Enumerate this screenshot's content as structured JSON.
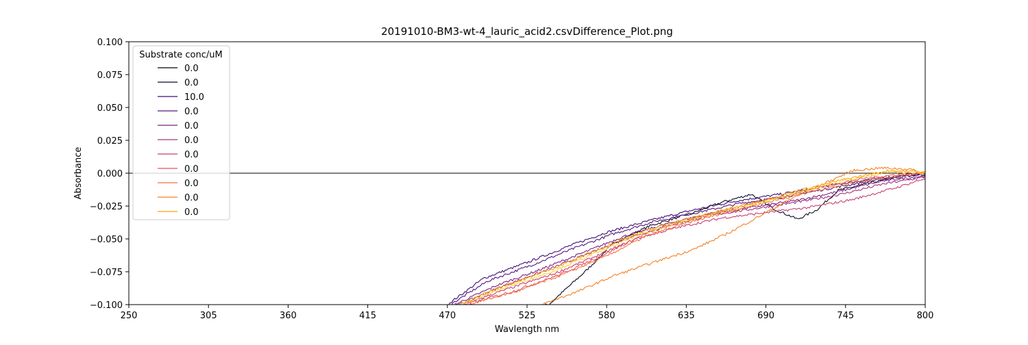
{
  "chart_data": {
    "type": "line",
    "title": "20191010-BM3-wt-4_lauric_acid2.csvDifference_Plot.png",
    "xlabel": "Wavlength nm",
    "ylabel": "Absorbance",
    "xlim": [
      250,
      800
    ],
    "ylim": [
      -0.1,
      0.1
    ],
    "xticks": [
      "250",
      "305",
      "360",
      "415",
      "470",
      "525",
      "580",
      "635",
      "690",
      "745",
      "800"
    ],
    "yticks": [
      "0.100",
      "0.075",
      "0.050",
      "0.025",
      "0.000",
      "−0.025",
      "−0.050",
      "−0.075",
      "−0.100"
    ],
    "grid": false,
    "legend": {
      "title": "Substrate conc/uM",
      "placement": "upper-left",
      "entries": [
        "0.0",
        "0.0",
        "10.0",
        "0.0",
        "0.0",
        "0.0",
        "0.0",
        "0.0",
        "0.0",
        "0.0",
        "0.0"
      ]
    },
    "series": [
      {
        "color": "#000000",
        "points": [
          [
            250,
            0.0
          ],
          [
            800,
            0.0
          ]
        ]
      },
      {
        "color": "#0b0a24",
        "points": [
          [
            485,
            -0.1
          ],
          [
            520,
            -0.103
          ],
          [
            540,
            -0.1
          ],
          [
            565,
            -0.075
          ],
          [
            585,
            -0.053
          ],
          [
            610,
            -0.04
          ],
          [
            640,
            -0.03
          ],
          [
            660,
            -0.022
          ],
          [
            680,
            -0.016
          ],
          [
            695,
            -0.027
          ],
          [
            712,
            -0.035
          ],
          [
            725,
            -0.028
          ],
          [
            740,
            -0.013
          ],
          [
            760,
            -0.008
          ],
          [
            785,
            -0.002
          ],
          [
            800,
            -0.001
          ]
        ]
      },
      {
        "color": "#3b0f70",
        "points": [
          [
            470,
            -0.1
          ],
          [
            495,
            -0.08
          ],
          [
            525,
            -0.068
          ],
          [
            555,
            -0.055
          ],
          [
            580,
            -0.045
          ],
          [
            610,
            -0.036
          ],
          [
            640,
            -0.028
          ],
          [
            670,
            -0.021
          ],
          [
            700,
            -0.016
          ],
          [
            730,
            -0.01
          ],
          [
            760,
            -0.005
          ],
          [
            790,
            -0.001
          ],
          [
            800,
            0.0
          ]
        ]
      },
      {
        "color": "#57157e",
        "points": [
          [
            472,
            -0.1
          ],
          [
            498,
            -0.082
          ],
          [
            528,
            -0.07
          ],
          [
            558,
            -0.057
          ],
          [
            585,
            -0.046
          ],
          [
            612,
            -0.037
          ],
          [
            642,
            -0.03
          ],
          [
            672,
            -0.023
          ],
          [
            702,
            -0.018
          ],
          [
            732,
            -0.012
          ],
          [
            762,
            -0.006
          ],
          [
            790,
            -0.002
          ],
          [
            800,
            -0.001
          ]
        ]
      },
      {
        "color": "#7a2182",
        "points": [
          [
            475,
            -0.1
          ],
          [
            505,
            -0.085
          ],
          [
            535,
            -0.073
          ],
          [
            565,
            -0.06
          ],
          [
            592,
            -0.048
          ],
          [
            620,
            -0.039
          ],
          [
            650,
            -0.031
          ],
          [
            680,
            -0.026
          ],
          [
            710,
            -0.021
          ],
          [
            740,
            -0.014
          ],
          [
            770,
            -0.006
          ],
          [
            800,
            -0.002
          ]
        ]
      },
      {
        "color": "#a3307e",
        "points": [
          [
            478,
            -0.1
          ],
          [
            508,
            -0.086
          ],
          [
            538,
            -0.074
          ],
          [
            568,
            -0.061
          ],
          [
            595,
            -0.049
          ],
          [
            622,
            -0.04
          ],
          [
            652,
            -0.032
          ],
          [
            682,
            -0.027
          ],
          [
            712,
            -0.022
          ],
          [
            742,
            -0.016
          ],
          [
            772,
            -0.008
          ],
          [
            800,
            -0.003
          ]
        ]
      },
      {
        "color": "#c83e73",
        "points": [
          [
            480,
            -0.1
          ],
          [
            512,
            -0.088
          ],
          [
            545,
            -0.076
          ],
          [
            575,
            -0.062
          ],
          [
            600,
            -0.05
          ],
          [
            630,
            -0.041
          ],
          [
            660,
            -0.034
          ],
          [
            690,
            -0.03
          ],
          [
            720,
            -0.026
          ],
          [
            750,
            -0.02
          ],
          [
            780,
            -0.011
          ],
          [
            800,
            -0.004
          ]
        ]
      },
      {
        "color": "#e5505f",
        "points": [
          [
            482,
            -0.1
          ],
          [
            515,
            -0.09
          ],
          [
            548,
            -0.077
          ],
          [
            578,
            -0.062
          ],
          [
            605,
            -0.047
          ],
          [
            632,
            -0.037
          ],
          [
            662,
            -0.028
          ],
          [
            692,
            -0.02
          ],
          [
            722,
            -0.012
          ],
          [
            752,
            -0.005
          ],
          [
            780,
            -0.001
          ],
          [
            800,
            0.0
          ]
        ]
      },
      {
        "color": "#f36e43",
        "points": [
          [
            484,
            -0.1
          ],
          [
            518,
            -0.09
          ],
          [
            550,
            -0.077
          ],
          [
            580,
            -0.063
          ],
          [
            607,
            -0.048
          ],
          [
            635,
            -0.038
          ],
          [
            665,
            -0.029
          ],
          [
            695,
            -0.021
          ],
          [
            725,
            -0.013
          ],
          [
            755,
            -0.006
          ],
          [
            782,
            -0.002
          ],
          [
            800,
            0.0
          ]
        ]
      },
      {
        "color": "#f57f20",
        "points": [
          [
            535,
            -0.1
          ],
          [
            560,
            -0.09
          ],
          [
            585,
            -0.078
          ],
          [
            612,
            -0.068
          ],
          [
            640,
            -0.058
          ],
          [
            665,
            -0.045
          ],
          [
            690,
            -0.03
          ],
          [
            710,
            -0.018
          ],
          [
            730,
            -0.008
          ],
          [
            750,
            0.002
          ],
          [
            770,
            0.004
          ],
          [
            790,
            0.003
          ],
          [
            800,
            -0.001
          ]
        ]
      },
      {
        "color": "#fba40a",
        "points": [
          [
            478,
            -0.1
          ],
          [
            508,
            -0.086
          ],
          [
            540,
            -0.074
          ],
          [
            570,
            -0.06
          ],
          [
            598,
            -0.047
          ],
          [
            627,
            -0.037
          ],
          [
            657,
            -0.029
          ],
          [
            687,
            -0.021
          ],
          [
            717,
            -0.012
          ],
          [
            747,
            -0.004
          ],
          [
            775,
            0.002
          ],
          [
            800,
            0.001
          ]
        ]
      },
      {
        "color": "#f7d13d",
        "points": [
          [
            479,
            -0.1
          ],
          [
            510,
            -0.087
          ],
          [
            542,
            -0.075
          ],
          [
            572,
            -0.061
          ],
          [
            600,
            -0.048
          ],
          [
            628,
            -0.038
          ],
          [
            658,
            -0.03
          ],
          [
            688,
            -0.022
          ],
          [
            718,
            -0.013
          ],
          [
            748,
            -0.005
          ],
          [
            776,
            0.001
          ],
          [
            800,
            0.0
          ]
        ]
      }
    ]
  }
}
